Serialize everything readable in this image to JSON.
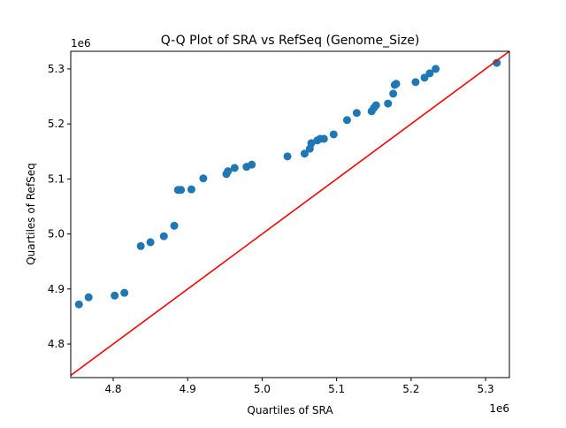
{
  "chart_data": {
    "type": "scatter",
    "title": "Q-Q Plot of SRA vs RefSeq (Genome_Size)",
    "xlabel": "Quartiles of SRA",
    "ylabel": "Quartiles of RefSeq",
    "x_offset_label": "1e6",
    "y_offset_label": "1e6",
    "xlim": [
      4.743,
      5.332
    ],
    "ylim": [
      4.739,
      5.332
    ],
    "xticks": [
      4.8,
      4.9,
      5.0,
      5.1,
      5.2,
      5.3
    ],
    "yticks": [
      4.8,
      4.9,
      5.0,
      5.1,
      5.2,
      5.3
    ],
    "xtick_labels": [
      "4.8",
      "4.9",
      "5.0",
      "5.1",
      "5.2",
      "5.3"
    ],
    "ytick_labels": [
      "4.8",
      "4.9",
      "5.0",
      "5.1",
      "5.2",
      "5.3"
    ],
    "grid": false,
    "point_color": "#1f77b4",
    "reference_line": {
      "type": "y=x",
      "color": "#ff0000"
    },
    "points": [
      [
        4.754,
        4.872
      ],
      [
        4.767,
        4.885
      ],
      [
        4.802,
        4.888
      ],
      [
        4.815,
        4.893
      ],
      [
        4.837,
        4.978
      ],
      [
        4.85,
        4.985
      ],
      [
        4.868,
        4.996
      ],
      [
        4.882,
        5.015
      ],
      [
        4.887,
        5.08
      ],
      [
        4.891,
        5.08
      ],
      [
        4.905,
        5.081
      ],
      [
        4.921,
        5.101
      ],
      [
        4.952,
        5.109
      ],
      [
        4.954,
        5.114
      ],
      [
        4.963,
        5.12
      ],
      [
        4.979,
        5.122
      ],
      [
        4.986,
        5.126
      ],
      [
        5.034,
        5.141
      ],
      [
        5.057,
        5.146
      ],
      [
        5.064,
        5.155
      ],
      [
        5.066,
        5.165
      ],
      [
        5.074,
        5.17
      ],
      [
        5.078,
        5.173
      ],
      [
        5.083,
        5.173
      ],
      [
        5.096,
        5.181
      ],
      [
        5.114,
        5.207
      ],
      [
        5.127,
        5.22
      ],
      [
        5.147,
        5.223
      ],
      [
        5.15,
        5.229
      ],
      [
        5.153,
        5.234
      ],
      [
        5.169,
        5.237
      ],
      [
        5.176,
        5.255
      ],
      [
        5.178,
        5.271
      ],
      [
        5.18,
        5.273
      ],
      [
        5.206,
        5.276
      ],
      [
        5.218,
        5.284
      ],
      [
        5.225,
        5.292
      ],
      [
        5.233,
        5.3
      ],
      [
        5.315,
        5.311
      ]
    ]
  }
}
